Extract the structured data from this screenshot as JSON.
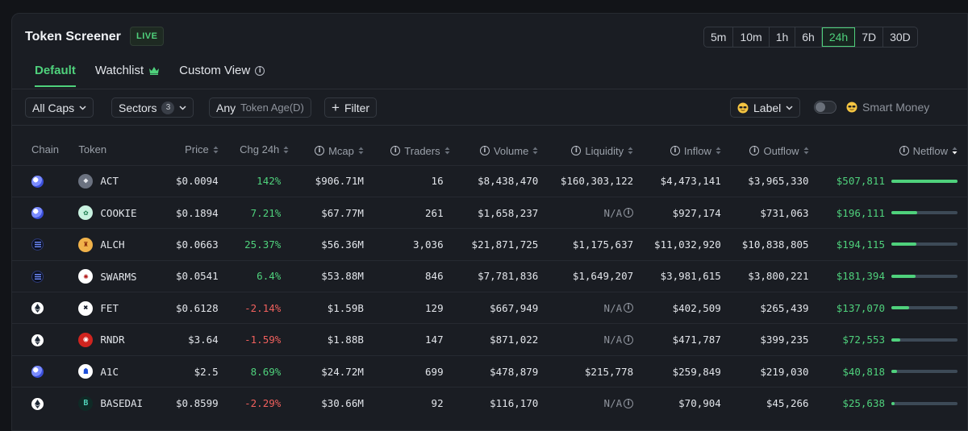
{
  "header": {
    "title": "Token Screener",
    "live_label": "LIVE",
    "timeframes": [
      "5m",
      "10m",
      "1h",
      "6h",
      "24h",
      "7D",
      "30D"
    ],
    "active_timeframe": "24h"
  },
  "tabs": [
    {
      "label": "Default",
      "active": true
    },
    {
      "label": "Watchlist",
      "icon": "crown-icon"
    },
    {
      "label": "Custom View",
      "icon": "info-icon"
    }
  ],
  "filters": {
    "caps": "All Caps",
    "sectors": "Sectors",
    "sectors_count": "3",
    "token_age_value": "Any",
    "token_age_label": "Token Age(D)",
    "filter_label": "Filter",
    "label_button": "Label",
    "smart_money": "Smart Money"
  },
  "columns": {
    "chain": "Chain",
    "token": "Token",
    "price": "Price",
    "chg24h": "Chg 24h",
    "mcap": "Mcap",
    "traders": "Traders",
    "volume": "Volume",
    "liquidity": "Liquidity",
    "inflow": "Inflow",
    "outflow": "Outflow",
    "netflow": "Netflow"
  },
  "colors": {
    "accent_green": "#4fd17c",
    "negative_red": "#f0605d"
  },
  "rows": [
    {
      "chain": "solana",
      "token": "ACT",
      "price": "$0.0094",
      "chg": "142%",
      "chg_dir": "pos",
      "mcap": "$906.71M",
      "traders": "16",
      "volume": "$8,438,470",
      "liquidity": "$160,303,122",
      "inflow": "$4,473,141",
      "outflow": "$3,965,330",
      "netflow": "$507,811",
      "netflow_fraction": 1.0
    },
    {
      "chain": "solana",
      "token": "COOKIE",
      "price": "$0.1894",
      "chg": "7.21%",
      "chg_dir": "pos",
      "mcap": "$67.77M",
      "traders": "261",
      "volume": "$1,658,237",
      "liquidity": "N/A",
      "inflow": "$927,174",
      "outflow": "$731,063",
      "netflow": "$196,111",
      "netflow_fraction": 0.39
    },
    {
      "chain": "base",
      "token": "ALCH",
      "price": "$0.0663",
      "chg": "25.37%",
      "chg_dir": "pos",
      "mcap": "$56.36M",
      "traders": "3,036",
      "volume": "$21,871,725",
      "liquidity": "$1,175,637",
      "inflow": "$11,032,920",
      "outflow": "$10,838,805",
      "netflow": "$194,115",
      "netflow_fraction": 0.38
    },
    {
      "chain": "base",
      "token": "SWARMS",
      "price": "$0.0541",
      "chg": "6.4%",
      "chg_dir": "pos",
      "mcap": "$53.88M",
      "traders": "846",
      "volume": "$7,781,836",
      "liquidity": "$1,649,207",
      "inflow": "$3,981,615",
      "outflow": "$3,800,221",
      "netflow": "$181,394",
      "netflow_fraction": 0.36
    },
    {
      "chain": "ethereum",
      "token": "FET",
      "price": "$0.6128",
      "chg": "-2.14%",
      "chg_dir": "neg",
      "mcap": "$1.59B",
      "traders": "129",
      "volume": "$667,949",
      "liquidity": "N/A",
      "inflow": "$402,509",
      "outflow": "$265,439",
      "netflow": "$137,070",
      "netflow_fraction": 0.27
    },
    {
      "chain": "ethereum",
      "token": "RNDR",
      "price": "$3.64",
      "chg": "-1.59%",
      "chg_dir": "neg",
      "mcap": "$1.88B",
      "traders": "147",
      "volume": "$871,022",
      "liquidity": "N/A",
      "inflow": "$471,787",
      "outflow": "$399,235",
      "netflow": "$72,553",
      "netflow_fraction": 0.14
    },
    {
      "chain": "solana",
      "token": "A1C",
      "price": "$2.5",
      "chg": "8.69%",
      "chg_dir": "pos",
      "mcap": "$24.72M",
      "traders": "699",
      "volume": "$478,879",
      "liquidity": "$215,778",
      "inflow": "$259,849",
      "outflow": "$219,030",
      "netflow": "$40,818",
      "netflow_fraction": 0.08
    },
    {
      "chain": "ethereum",
      "token": "BASEDAI",
      "price": "$0.8599",
      "chg": "-2.29%",
      "chg_dir": "neg",
      "mcap": "$30.66M",
      "traders": "92",
      "volume": "$116,170",
      "liquidity": "N/A",
      "inflow": "$70,904",
      "outflow": "$45,266",
      "netflow": "$25,638",
      "netflow_fraction": 0.05
    }
  ]
}
